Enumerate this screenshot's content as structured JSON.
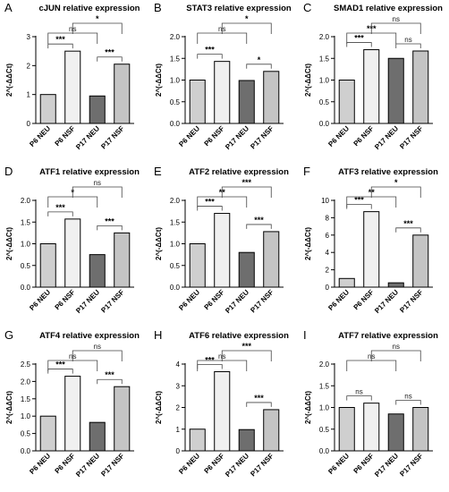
{
  "colors": {
    "P6 NEU": "#cfcfcf",
    "P6 NSF": "#f0f0f0",
    "P17 NEU": "#6e6e6e",
    "P17 NSF": "#c4c4c4",
    "stroke": "#000000"
  },
  "chart_data": [
    {
      "panel": "A",
      "type": "bar",
      "title": "cJUN relative expression",
      "ylabel": "2^(-ΔΔCt)",
      "xlabel": "",
      "categories": [
        "P6 NEU",
        "P6 NSF",
        "P17 NEU",
        "P17 NSF"
      ],
      "values": [
        1.0,
        2.5,
        0.95,
        2.05
      ],
      "ylim": [
        0,
        3
      ],
      "yticks": [
        0,
        1,
        2,
        3
      ],
      "comparisons": [
        {
          "a": 0,
          "b": 1,
          "label": "***",
          "level": 0
        },
        {
          "a": 2,
          "b": 3,
          "label": "***",
          "level": 0
        },
        {
          "a": 0,
          "b": 2,
          "label": "ns",
          "level": 1
        },
        {
          "a": 1,
          "b": 3,
          "label": "*",
          "level": 2
        }
      ]
    },
    {
      "panel": "B",
      "type": "bar",
      "title": "STAT3 relative expression",
      "ylabel": "2^(-ΔΔCt)",
      "xlabel": "",
      "categories": [
        "P6 NEU",
        "P6 NSF",
        "P17 NEU",
        "P17 NSF"
      ],
      "values": [
        1.0,
        1.43,
        0.99,
        1.2
      ],
      "ylim": [
        0,
        2.0
      ],
      "yticks": [
        "0.0",
        "0.5",
        "1.0",
        "1.5",
        "2.0"
      ],
      "comparisons": [
        {
          "a": 0,
          "b": 1,
          "label": "***",
          "level": 0
        },
        {
          "a": 2,
          "b": 3,
          "label": "*",
          "level": 0
        },
        {
          "a": 0,
          "b": 2,
          "label": "ns",
          "level": 1
        },
        {
          "a": 1,
          "b": 3,
          "label": "*",
          "level": 2
        }
      ]
    },
    {
      "panel": "C",
      "type": "bar",
      "title": "SMAD1 relative expression",
      "ylabel": "2^(-ΔΔCt)",
      "xlabel": "",
      "categories": [
        "P6 NEU",
        "P6 NSF",
        "P17 NEU",
        "P17 NSF"
      ],
      "values": [
        1.0,
        1.7,
        1.5,
        1.67
      ],
      "ylim": [
        0,
        2.0
      ],
      "yticks": [
        "0.0",
        "0.5",
        "1.0",
        "1.5",
        "2.0"
      ],
      "comparisons": [
        {
          "a": 0,
          "b": 1,
          "label": "***",
          "level": 0
        },
        {
          "a": 2,
          "b": 3,
          "label": "ns",
          "level": 0
        },
        {
          "a": 0,
          "b": 2,
          "label": "***",
          "level": 1
        },
        {
          "a": 1,
          "b": 3,
          "label": "ns",
          "level": 2
        }
      ]
    },
    {
      "panel": "D",
      "type": "bar",
      "title": "ATF1 relative expression",
      "ylabel": "2^(-ΔΔCt)",
      "xlabel": "",
      "categories": [
        "P6 NEU",
        "P6 NSF",
        "P17 NEU",
        "P17 NSF"
      ],
      "values": [
        1.0,
        1.57,
        0.75,
        1.25
      ],
      "ylim": [
        0,
        2.0
      ],
      "yticks": [
        "0.0",
        "0.5",
        "1.0",
        "1.5",
        "2.0"
      ],
      "comparisons": [
        {
          "a": 0,
          "b": 1,
          "label": "***",
          "level": 0
        },
        {
          "a": 2,
          "b": 3,
          "label": "***",
          "level": 0
        },
        {
          "a": 0,
          "b": 2,
          "label": "*",
          "level": 1
        },
        {
          "a": 1,
          "b": 3,
          "label": "ns",
          "level": 2
        }
      ]
    },
    {
      "panel": "E",
      "type": "bar",
      "title": "ATF2 relative expression",
      "ylabel": "2^(-ΔΔCt)",
      "xlabel": "",
      "categories": [
        "P6 NEU",
        "P6 NSF",
        "P17 NEU",
        "P17 NSF"
      ],
      "values": [
        1.0,
        1.7,
        0.8,
        1.28
      ],
      "ylim": [
        0,
        2.0
      ],
      "yticks": [
        "0.0",
        "0.5",
        "1.0",
        "1.5",
        "2.0"
      ],
      "comparisons": [
        {
          "a": 0,
          "b": 1,
          "label": "***",
          "level": 0
        },
        {
          "a": 2,
          "b": 3,
          "label": "***",
          "level": 0
        },
        {
          "a": 0,
          "b": 2,
          "label": "**",
          "level": 1
        },
        {
          "a": 1,
          "b": 3,
          "label": "***",
          "level": 2
        }
      ]
    },
    {
      "panel": "F",
      "type": "bar",
      "title": "ATF3 relative expression",
      "ylabel": "2^(-ΔΔCt)",
      "xlabel": "",
      "categories": [
        "P6 NEU",
        "P6 NSF",
        "P17 NEU",
        "P17 NSF"
      ],
      "values": [
        1.0,
        8.7,
        0.5,
        6.0
      ],
      "ylim": [
        0,
        10
      ],
      "yticks": [
        0,
        2,
        4,
        6,
        8,
        10
      ],
      "comparisons": [
        {
          "a": 0,
          "b": 1,
          "label": "***",
          "level": 0
        },
        {
          "a": 2,
          "b": 3,
          "label": "***",
          "level": 0
        },
        {
          "a": 0,
          "b": 2,
          "label": "**",
          "level": 1
        },
        {
          "a": 1,
          "b": 3,
          "label": "*",
          "level": 2
        }
      ]
    },
    {
      "panel": "G",
      "type": "bar",
      "title": "ATF4 relative expression",
      "ylabel": "2^(-ΔΔCt)",
      "xlabel": "",
      "categories": [
        "P6 NEU",
        "P6 NSF",
        "P17 NEU",
        "P17 NSF"
      ],
      "values": [
        1.0,
        2.15,
        0.82,
        1.85
      ],
      "ylim": [
        0,
        2.5
      ],
      "yticks": [
        "0.0",
        "0.5",
        "1.0",
        "1.5",
        "2.0",
        "2.5"
      ],
      "comparisons": [
        {
          "a": 0,
          "b": 1,
          "label": "***",
          "level": 0
        },
        {
          "a": 2,
          "b": 3,
          "label": "***",
          "level": 0
        },
        {
          "a": 0,
          "b": 2,
          "label": "ns",
          "level": 1
        },
        {
          "a": 1,
          "b": 3,
          "label": "ns",
          "level": 2
        }
      ]
    },
    {
      "panel": "H",
      "type": "bar",
      "title": "ATF6 relative expression",
      "ylabel": "2^(-ΔΔCt)",
      "xlabel": "",
      "categories": [
        "P6 NEU",
        "P6 NSF",
        "P17 NEU",
        "P17 NSF"
      ],
      "values": [
        1.0,
        3.65,
        0.98,
        1.9
      ],
      "ylim": [
        0,
        4
      ],
      "yticks": [
        0,
        1,
        2,
        3,
        4
      ],
      "comparisons": [
        {
          "a": 0,
          "b": 1,
          "label": "***",
          "level": 0
        },
        {
          "a": 2,
          "b": 3,
          "label": "***",
          "level": 0
        },
        {
          "a": 0,
          "b": 2,
          "label": "ns",
          "level": 1
        },
        {
          "a": 1,
          "b": 3,
          "label": "***",
          "level": 2
        }
      ]
    },
    {
      "panel": "I",
      "type": "bar",
      "title": "ATF7 relative expression",
      "ylabel": "2^(-ΔΔCt)",
      "xlabel": "",
      "categories": [
        "P6 NEU",
        "P6 NSF",
        "P17 NEU",
        "P17 NSF"
      ],
      "values": [
        1.0,
        1.1,
        0.85,
        1.0
      ],
      "ylim": [
        0,
        2.0
      ],
      "yticks": [
        "0.0",
        "0.5",
        "1.0",
        "1.5",
        "2.0"
      ],
      "comparisons": [
        {
          "a": 0,
          "b": 1,
          "label": "ns",
          "level": 0
        },
        {
          "a": 2,
          "b": 3,
          "label": "ns",
          "level": 0
        },
        {
          "a": 0,
          "b": 2,
          "label": "ns",
          "level": 1
        },
        {
          "a": 1,
          "b": 3,
          "label": "ns",
          "level": 2
        }
      ]
    }
  ]
}
